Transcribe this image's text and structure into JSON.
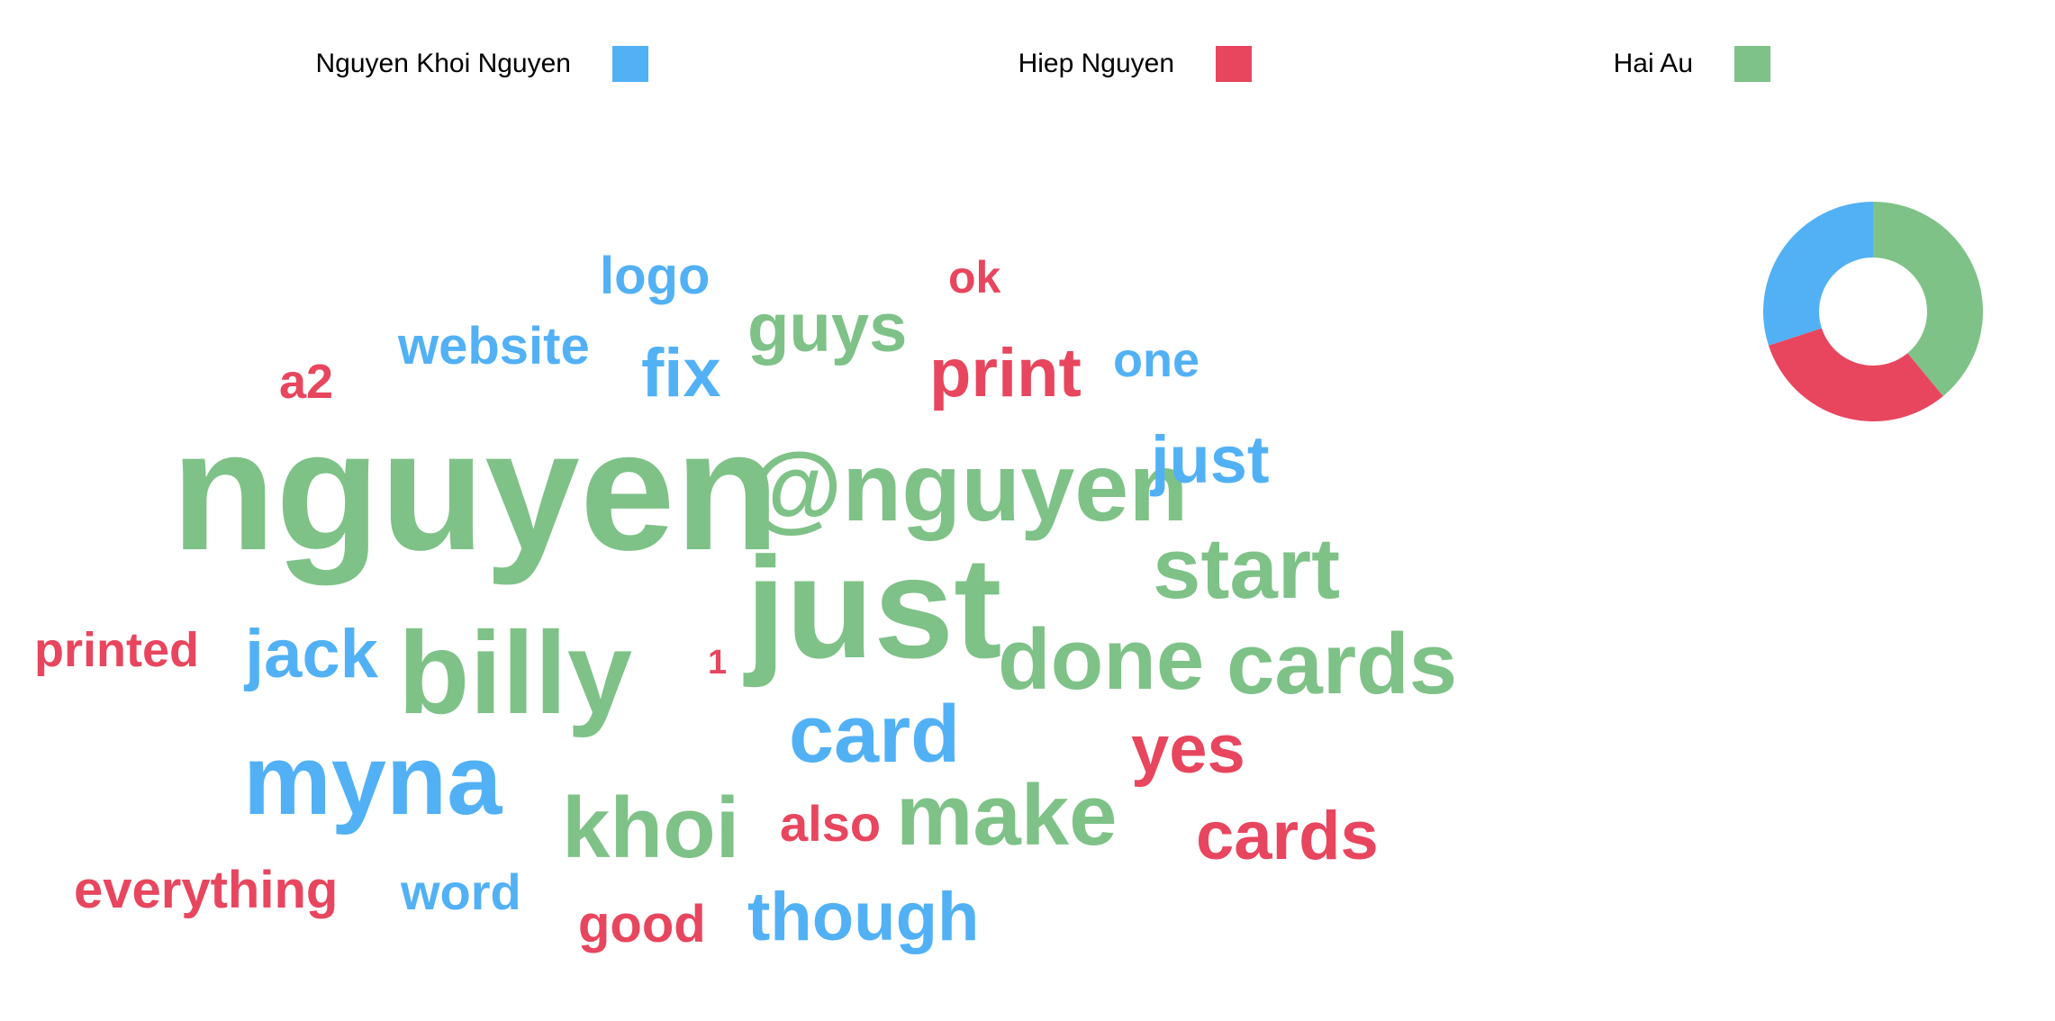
{
  "legend": [
    {
      "label": "Nguyen Khoi Nguyen",
      "color": "#52b1f5"
    },
    {
      "label": "Hiep Nguyen",
      "color": "#e8465e"
    },
    {
      "label": "Hai Au",
      "color": "#7ec287"
    }
  ],
  "chart_data": {
    "type": "word-cloud",
    "words": [
      {
        "text": "nguyen",
        "series": "Hai Au"
      },
      {
        "text": "@nguyen",
        "series": "Hai Au"
      },
      {
        "text": "just",
        "series": "Hai Au"
      },
      {
        "text": "billy",
        "series": "Hai Au"
      },
      {
        "text": "start",
        "series": "Hai Au"
      },
      {
        "text": "done",
        "series": "Hai Au"
      },
      {
        "text": "cards",
        "series": "Hai Au"
      },
      {
        "text": "khoi",
        "series": "Hai Au"
      },
      {
        "text": "make",
        "series": "Hai Au"
      },
      {
        "text": "guys",
        "series": "Hai Au"
      },
      {
        "text": "myna",
        "series": "Nguyen Khoi Nguyen"
      },
      {
        "text": "card",
        "series": "Nguyen Khoi Nguyen"
      },
      {
        "text": "jack",
        "series": "Nguyen Khoi Nguyen"
      },
      {
        "text": "though",
        "series": "Nguyen Khoi Nguyen"
      },
      {
        "text": "just",
        "series": "Nguyen Khoi Nguyen"
      },
      {
        "text": "fix",
        "series": "Nguyen Khoi Nguyen"
      },
      {
        "text": "website",
        "series": "Nguyen Khoi Nguyen"
      },
      {
        "text": "logo",
        "series": "Nguyen Khoi Nguyen"
      },
      {
        "text": "one",
        "series": "Nguyen Khoi Nguyen"
      },
      {
        "text": "word",
        "series": "Nguyen Khoi Nguyen"
      },
      {
        "text": "print",
        "series": "Hiep Nguyen"
      },
      {
        "text": "cards",
        "series": "Hiep Nguyen"
      },
      {
        "text": "yes",
        "series": "Hiep Nguyen"
      },
      {
        "text": "printed",
        "series": "Hiep Nguyen"
      },
      {
        "text": "everything",
        "series": "Hiep Nguyen"
      },
      {
        "text": "good",
        "series": "Hiep Nguyen"
      },
      {
        "text": "also",
        "series": "Hiep Nguyen"
      },
      {
        "text": "a2",
        "series": "Hiep Nguyen"
      },
      {
        "text": "ok",
        "series": "Hiep Nguyen"
      },
      {
        "text": "1",
        "series": "Hiep Nguyen"
      }
    ],
    "donut": [
      {
        "series": "Hai Au",
        "share": 0.39
      },
      {
        "series": "Hiep Nguyen",
        "share": 0.31
      },
      {
        "series": "Nguyen Khoi Nguyen",
        "share": 0.3
      }
    ]
  }
}
